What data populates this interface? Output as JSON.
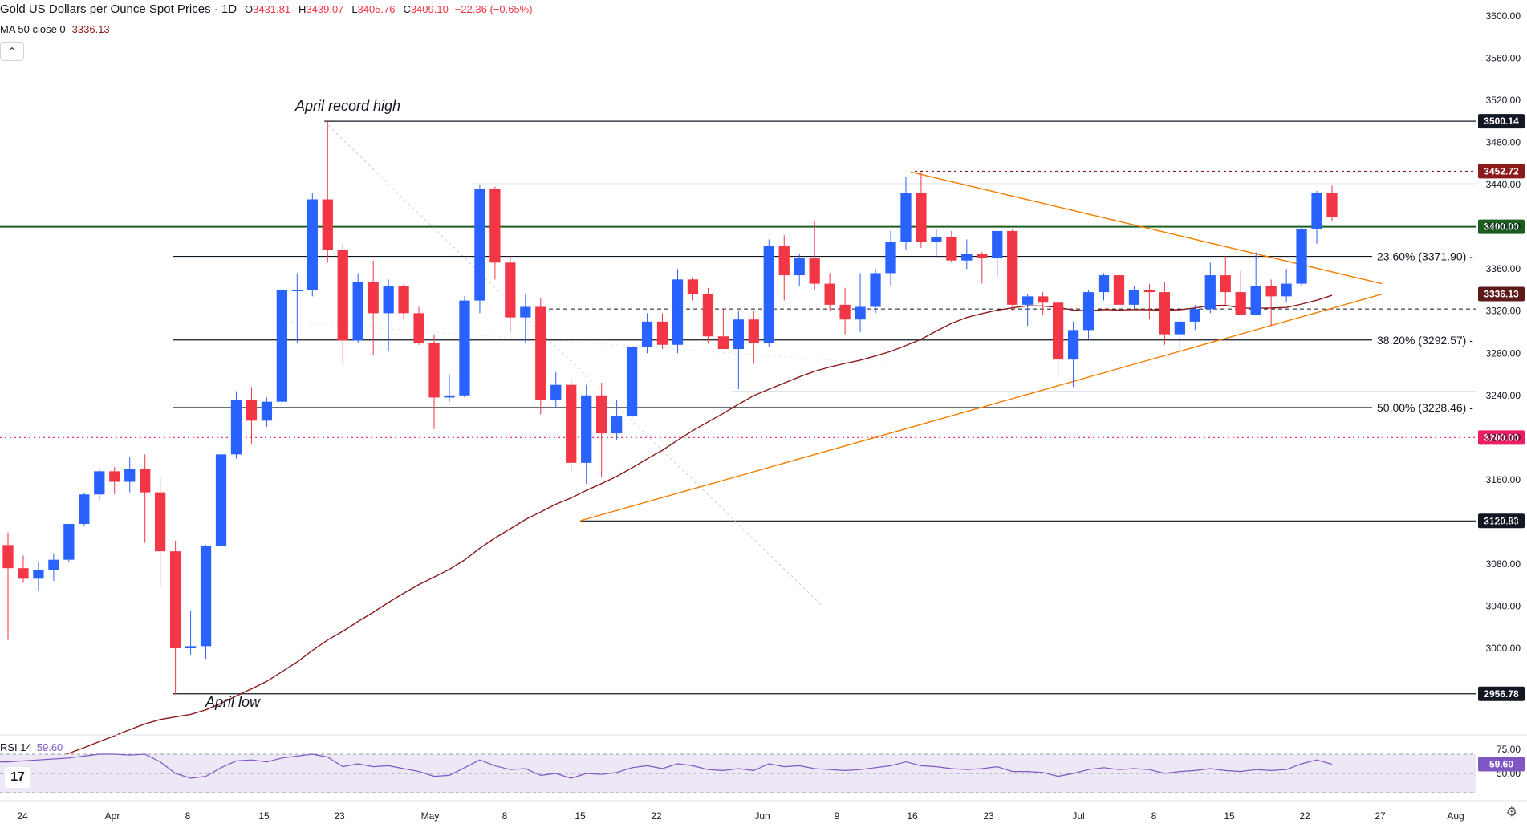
{
  "header": {
    "title": "Gold US Dollars per Ounce Spot Prices · 1D",
    "o_label": "O",
    "o": "3431.81",
    "h_label": "H",
    "h": "3439.07",
    "l_label": "L",
    "l": "3405.76",
    "c_label": "C",
    "c": "3409.10",
    "change": "−22.36 (−0.65%)",
    "ma_label": "MA 50 close 0",
    "ma_value": "3336.13",
    "collapse_icon": "chevron-up-icon"
  },
  "rsi_header": {
    "label": "RSI 14",
    "value": "59.60"
  },
  "colors": {
    "up": "#2962ff",
    "down": "#f23645",
    "ma": "#8b1a1a",
    "triangle": "#f57c00",
    "green_line": "#1b5e20",
    "pink_line": "#e91e63",
    "rsi": "#7e57c2",
    "rsi_band": "#ede7f6"
  },
  "chart_data": {
    "type": "candlestick",
    "title": "Gold US Dollars per Ounce Spot Prices · 1D",
    "y_axis": {
      "min": 2940,
      "max": 3610,
      "ticks": [
        3000,
        3040,
        3080,
        3120,
        3160,
        3200,
        3240,
        3280,
        3320,
        3360,
        3400,
        3440,
        3480,
        3520,
        3560,
        3600
      ]
    },
    "y_tick_labels": [
      "3000.00",
      "3040.00",
      "3080.00",
      "3120.00",
      "3160.00",
      "3200.00",
      "3240.00",
      "3280.00",
      "3320.00",
      "3360.00",
      "3400.00",
      "3440.00",
      "3480.00",
      "3520.00",
      "3560.00",
      "3600.00"
    ],
    "x_labels": [
      "24",
      "Apr",
      "8",
      "15",
      "23",
      "May",
      "8",
      "15",
      "22",
      "Jun",
      "9",
      "16",
      "23",
      "Jul",
      "8",
      "15",
      "22",
      "27",
      "Aug"
    ],
    "candles": [
      [
        3098,
        3110,
        3008,
        3076
      ],
      [
        3076,
        3088,
        3062,
        3066
      ],
      [
        3066,
        3082,
        3055,
        3074
      ],
      [
        3074,
        3090,
        3064,
        3084
      ],
      [
        3084,
        3118,
        3082,
        3118
      ],
      [
        3118,
        3148,
        3116,
        3146
      ],
      [
        3146,
        3170,
        3140,
        3168
      ],
      [
        3168,
        3172,
        3146,
        3158
      ],
      [
        3158,
        3182,
        3148,
        3170
      ],
      [
        3170,
        3184,
        3100,
        3148
      ],
      [
        3148,
        3162,
        3058,
        3092
      ],
      [
        3092,
        3102,
        2956,
        3000
      ],
      [
        3000,
        3036,
        2994,
        3002
      ],
      [
        3002,
        3098,
        2990,
        3097
      ],
      [
        3097,
        3188,
        3094,
        3184
      ],
      [
        3184,
        3244,
        3180,
        3236
      ],
      [
        3236,
        3248,
        3194,
        3216
      ],
      [
        3216,
        3238,
        3210,
        3234
      ],
      [
        3234,
        3340,
        3230,
        3340
      ],
      [
        3340,
        3356,
        3290,
        3340
      ],
      [
        3340,
        3432,
        3334,
        3426
      ],
      [
        3426,
        3500,
        3366,
        3378
      ],
      [
        3378,
        3384,
        3270,
        3292
      ],
      [
        3292,
        3356,
        3290,
        3348
      ],
      [
        3348,
        3368,
        3278,
        3318
      ],
      [
        3318,
        3350,
        3282,
        3344
      ],
      [
        3344,
        3346,
        3312,
        3318
      ],
      [
        3318,
        3324,
        3288,
        3290
      ],
      [
        3290,
        3298,
        3208,
        3238
      ],
      [
        3238,
        3260,
        3234,
        3240
      ],
      [
        3240,
        3334,
        3238,
        3330
      ],
      [
        3330,
        3440,
        3318,
        3436
      ],
      [
        3436,
        3438,
        3350,
        3366
      ],
      [
        3366,
        3372,
        3300,
        3314
      ],
      [
        3314,
        3336,
        3290,
        3324
      ],
      [
        3324,
        3332,
        3222,
        3236
      ],
      [
        3236,
        3262,
        3228,
        3250
      ],
      [
        3250,
        3256,
        3168,
        3176
      ],
      [
        3176,
        3250,
        3156,
        3240
      ],
      [
        3240,
        3252,
        3162,
        3204
      ],
      [
        3204,
        3236,
        3198,
        3220
      ],
      [
        3220,
        3290,
        3216,
        3286
      ],
      [
        3286,
        3318,
        3280,
        3310
      ],
      [
        3310,
        3318,
        3284,
        3288
      ],
      [
        3288,
        3360,
        3280,
        3350
      ],
      [
        3350,
        3352,
        3330,
        3336
      ],
      [
        3336,
        3342,
        3290,
        3296
      ],
      [
        3296,
        3322,
        3288,
        3284
      ],
      [
        3284,
        3320,
        3246,
        3312
      ],
      [
        3312,
        3320,
        3270,
        3290
      ],
      [
        3290,
        3388,
        3286,
        3382
      ],
      [
        3382,
        3392,
        3330,
        3354
      ],
      [
        3354,
        3374,
        3344,
        3370
      ],
      [
        3370,
        3406,
        3340,
        3346
      ],
      [
        3346,
        3356,
        3320,
        3326
      ],
      [
        3326,
        3342,
        3298,
        3312
      ],
      [
        3312,
        3356,
        3300,
        3324
      ],
      [
        3324,
        3360,
        3318,
        3356
      ],
      [
        3356,
        3396,
        3344,
        3386
      ],
      [
        3386,
        3447,
        3378,
        3432
      ],
      [
        3432,
        3452,
        3380,
        3386
      ],
      [
        3386,
        3398,
        3370,
        3390
      ],
      [
        3390,
        3396,
        3366,
        3368
      ],
      [
        3368,
        3388,
        3360,
        3374
      ],
      [
        3374,
        3376,
        3346,
        3370
      ],
      [
        3370,
        3396,
        3352,
        3396
      ],
      [
        3396,
        3398,
        3320,
        3326
      ],
      [
        3326,
        3336,
        3306,
        3334
      ],
      [
        3334,
        3338,
        3316,
        3328
      ],
      [
        3328,
        3330,
        3258,
        3274
      ],
      [
        3274,
        3310,
        3248,
        3302
      ],
      [
        3302,
        3340,
        3294,
        3338
      ],
      [
        3338,
        3356,
        3330,
        3354
      ],
      [
        3354,
        3360,
        3318,
        3326
      ],
      [
        3326,
        3344,
        3322,
        3340
      ],
      [
        3340,
        3346,
        3312,
        3338
      ],
      [
        3338,
        3348,
        3288,
        3298
      ],
      [
        3298,
        3314,
        3282,
        3310
      ],
      [
        3310,
        3326,
        3302,
        3322
      ],
      [
        3322,
        3366,
        3318,
        3354
      ],
      [
        3354,
        3372,
        3326,
        3338
      ],
      [
        3338,
        3358,
        3318,
        3316
      ],
      [
        3316,
        3376,
        3316,
        3344
      ],
      [
        3344,
        3350,
        3306,
        3334
      ],
      [
        3334,
        3360,
        3328,
        3346
      ],
      [
        3346,
        3400,
        3344,
        3398
      ],
      [
        3398,
        3434,
        3384,
        3432
      ],
      [
        3431.81,
        3439.07,
        3405.76,
        3409.1
      ]
    ],
    "ma50_value": 3336.13,
    "levels": [
      {
        "label": "3500.14",
        "value": 3500.14
      },
      {
        "label": "3452.72",
        "value": 3452.72
      },
      {
        "label": "3400.00",
        "value": 3400.0
      },
      {
        "label": "3336.13",
        "value": 3336.13
      },
      {
        "label": "3200.00",
        "value": 3200.0
      },
      {
        "label": "3120.83",
        "value": 3120.83
      },
      {
        "label": "2956.78",
        "value": 2956.78
      }
    ],
    "fibonacci": [
      {
        "label": "23.60% (3371.90)",
        "value": 3371.9
      },
      {
        "label": "38.20% (3292.57)",
        "value": 3292.57
      },
      {
        "label": "50.00% (3228.46)",
        "value": 3228.46
      }
    ],
    "annotations": [
      "April record high",
      "April low"
    ],
    "rsi": {
      "period": 14,
      "current": 59.6,
      "levels": [
        30,
        50,
        70
      ],
      "axis_labels": [
        "75.00",
        "50.00"
      ],
      "values": [
        62,
        63,
        64,
        65,
        66,
        68,
        70,
        70,
        69,
        70,
        62,
        50,
        45,
        47,
        56,
        63,
        64,
        62,
        66,
        68,
        70,
        67,
        57,
        60,
        57,
        58,
        55,
        52,
        47,
        48,
        56,
        64,
        58,
        54,
        55,
        48,
        50,
        45,
        50,
        49,
        51,
        56,
        58,
        55,
        60,
        58,
        54,
        53,
        55,
        53,
        60,
        57,
        58,
        55,
        54,
        53,
        54,
        56,
        58,
        62,
        58,
        57,
        55,
        54,
        55,
        57,
        52,
        52,
        51,
        47,
        50,
        54,
        56,
        54,
        55,
        54,
        50,
        52,
        53,
        55,
        53,
        52,
        54,
        53,
        54,
        60,
        64,
        59.6
      ]
    }
  }
}
